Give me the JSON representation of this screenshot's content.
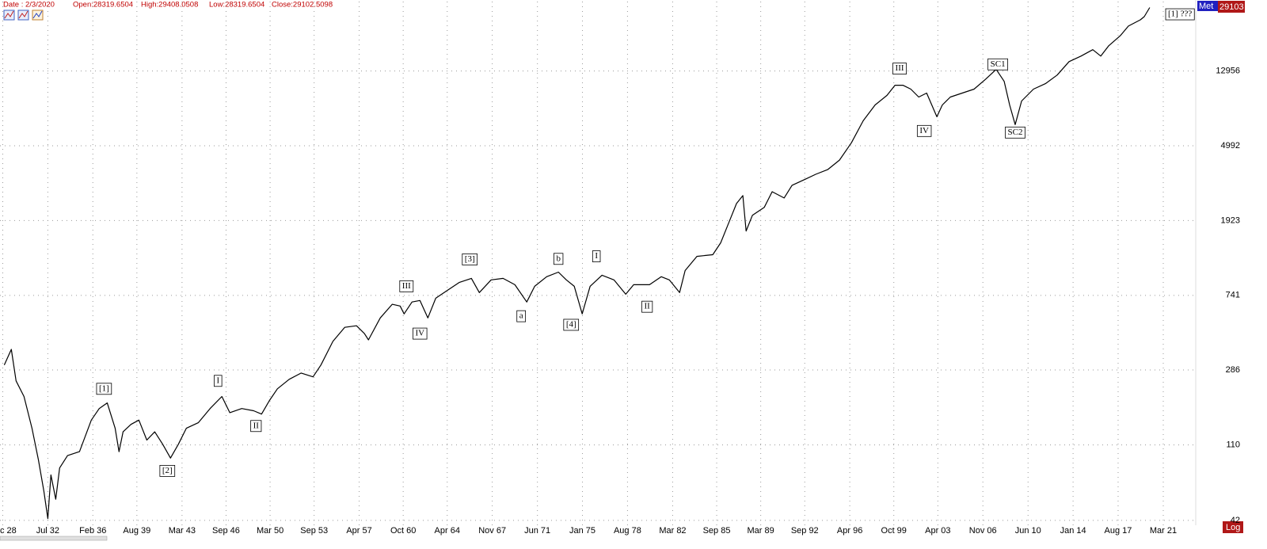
{
  "header": {
    "date": "Date : 2/3/2020",
    "open": "Open:28319.6504",
    "high": "High:29408.0508",
    "low": "Low:28319.6504",
    "close": "Close:29102.5098"
  },
  "chart_data": {
    "type": "line",
    "log_scale": true,
    "grid": true,
    "name_tag": "Met",
    "last_price": 29103,
    "log_button": "Log",
    "xlim": [
      1928.7,
      2023.75
    ],
    "ylim": [
      39.5,
      31400
    ],
    "xticks": [
      {
        "value": 1928.92,
        "label": "c 28"
      },
      {
        "value": 1932.5,
        "label": "Jul 32"
      },
      {
        "value": 1936.08,
        "label": "Feb 36"
      },
      {
        "value": 1939.58,
        "label": "Aug 39"
      },
      {
        "value": 1943.17,
        "label": "Mar 43"
      },
      {
        "value": 1946.67,
        "label": "Sep 46"
      },
      {
        "value": 1950.17,
        "label": "Mar 50"
      },
      {
        "value": 1953.67,
        "label": "Sep 53"
      },
      {
        "value": 1957.25,
        "label": "Apr 57"
      },
      {
        "value": 1960.75,
        "label": "Oct 60"
      },
      {
        "value": 1964.25,
        "label": "Apr 64"
      },
      {
        "value": 1967.83,
        "label": "Nov 67"
      },
      {
        "value": 1971.42,
        "label": "Jun 71"
      },
      {
        "value": 1975.0,
        "label": "Jan 75"
      },
      {
        "value": 1978.58,
        "label": "Aug 78"
      },
      {
        "value": 1982.17,
        "label": "Mar 82"
      },
      {
        "value": 1985.67,
        "label": "Sep 85"
      },
      {
        "value": 1989.17,
        "label": "Mar 89"
      },
      {
        "value": 1992.67,
        "label": "Sep 92"
      },
      {
        "value": 1996.25,
        "label": "Apr 96"
      },
      {
        "value": 1999.75,
        "label": "Oct 99"
      },
      {
        "value": 2003.25,
        "label": "Apr 03"
      },
      {
        "value": 2006.83,
        "label": "Nov 06"
      },
      {
        "value": 2010.42,
        "label": "Jun 10"
      },
      {
        "value": 2014.0,
        "label": "Jan 14"
      },
      {
        "value": 2017.58,
        "label": "Aug 17"
      },
      {
        "value": 2021.17,
        "label": "Mar 21"
      }
    ],
    "yticks": [
      42,
      110,
      286,
      741,
      1923,
      4992,
      12956
    ],
    "series": [
      {
        "color": "#000000",
        "x": [
          1929.04,
          1929.6,
          1929.98,
          1930.61,
          1931.24,
          1931.75,
          1932.19,
          1932.5,
          1932.75,
          1933.13,
          1933.44,
          1934.07,
          1935.02,
          1935.96,
          1936.59,
          1937.22,
          1937.85,
          1938.16,
          1938.48,
          1939.11,
          1939.74,
          1940.37,
          1941.0,
          1941.63,
          1942.25,
          1942.88,
          1943.51,
          1944.46,
          1945.4,
          1946.34,
          1946.97,
          1947.92,
          1948.86,
          1949.49,
          1950.12,
          1950.75,
          1951.69,
          1952.64,
          1953.58,
          1954.21,
          1955.16,
          1956.1,
          1957.04,
          1957.67,
          1957.99,
          1958.93,
          1959.88,
          1960.51,
          1960.82,
          1961.45,
          1962.08,
          1962.71,
          1963.34,
          1964.28,
          1965.22,
          1966.17,
          1966.8,
          1967.74,
          1968.69,
          1969.63,
          1970.57,
          1971.2,
          1972.15,
          1973.09,
          1973.72,
          1974.35,
          1974.98,
          1975.61,
          1976.55,
          1977.5,
          1978.44,
          1979.07,
          1980.33,
          1981.27,
          1981.9,
          1982.72,
          1983.16,
          1984.1,
          1985.36,
          1985.99,
          1986.62,
          1987.25,
          1987.75,
          1988.01,
          1988.51,
          1989.45,
          1990.08,
          1991.03,
          1991.66,
          1992.6,
          1993.54,
          1994.49,
          1995.43,
          1996.38,
          1997.32,
          1998.26,
          1999.21,
          1999.84,
          2000.47,
          2001.1,
          2001.73,
          2002.36,
          2003.17,
          2003.61,
          2004.24,
          2005.19,
          2006.13,
          2007.07,
          2007.89,
          2008.52,
          2008.96,
          2009.4,
          2009.91,
          2010.85,
          2011.8,
          2012.74,
          2013.68,
          2014.63,
          2015.57,
          2016.2,
          2016.83,
          2017.77,
          2018.4,
          2019.35,
          2019.66,
          2020.09
        ],
        "values": [
          305,
          372,
          249,
          204,
          136,
          91,
          61,
          43,
          75,
          55,
          82,
          96,
          101,
          151,
          175,
          188,
          136,
          101,
          130,
          143,
          151,
          117,
          130,
          111,
          93,
          111,
          136,
          146,
          175,
          204,
          166,
          175,
          170,
          163,
          194,
          225,
          254,
          275,
          262,
          305,
          412,
          493,
          503,
          455,
          420,
          556,
          661,
          647,
          585,
          681,
          694,
          556,
          715,
          791,
          875,
          920,
          768,
          903,
          920,
          849,
          681,
          832,
          940,
          997,
          903,
          832,
          585,
          832,
          958,
          903,
          752,
          849,
          849,
          940,
          903,
          768,
          1017,
          1219,
          1245,
          1448,
          1860,
          2390,
          2645,
          1684,
          2058,
          2275,
          2780,
          2566,
          3015,
          3231,
          3470,
          3684,
          4157,
          5190,
          6874,
          8400,
          9490,
          10800,
          10800,
          10280,
          9290,
          9780,
          7230,
          8400,
          9290,
          9780,
          10280,
          11700,
          13220,
          11350,
          8400,
          6540,
          8840,
          10280,
          11020,
          12310,
          14600,
          15670,
          17000,
          15670,
          17860,
          20380,
          22980,
          24900,
          25920,
          29100
        ]
      }
    ],
    "annotations": [
      {
        "text": "[1]",
        "x": 1936.97,
        "y": 225
      },
      {
        "text": "[2]",
        "x": 1942.0,
        "y": 79
      },
      {
        "text": "I",
        "x": 1946.03,
        "y": 249
      },
      {
        "text": "II",
        "x": 1949.05,
        "y": 140
      },
      {
        "text": "III",
        "x": 1961.01,
        "y": 832
      },
      {
        "text": "IV",
        "x": 1962.08,
        "y": 455
      },
      {
        "text": "[3]",
        "x": 1966.04,
        "y": 1172
      },
      {
        "text": "a",
        "x": 1970.13,
        "y": 568
      },
      {
        "text": "b",
        "x": 1973.09,
        "y": 1180
      },
      {
        "text": "[4]",
        "x": 1974.1,
        "y": 509
      },
      {
        "text": "I",
        "x": 1976.11,
        "y": 1219
      },
      {
        "text": "II",
        "x": 1980.14,
        "y": 641
      },
      {
        "text": "III",
        "x": 2000.21,
        "y": 13360
      },
      {
        "text": "IV",
        "x": 2002.17,
        "y": 6030
      },
      {
        "text": "SC1",
        "x": 2008.02,
        "y": 14100
      },
      {
        "text": "SC2",
        "x": 2009.4,
        "y": 5910
      },
      {
        "text": "[1] ???",
        "x": 2022.5,
        "y": 26700
      }
    ]
  }
}
